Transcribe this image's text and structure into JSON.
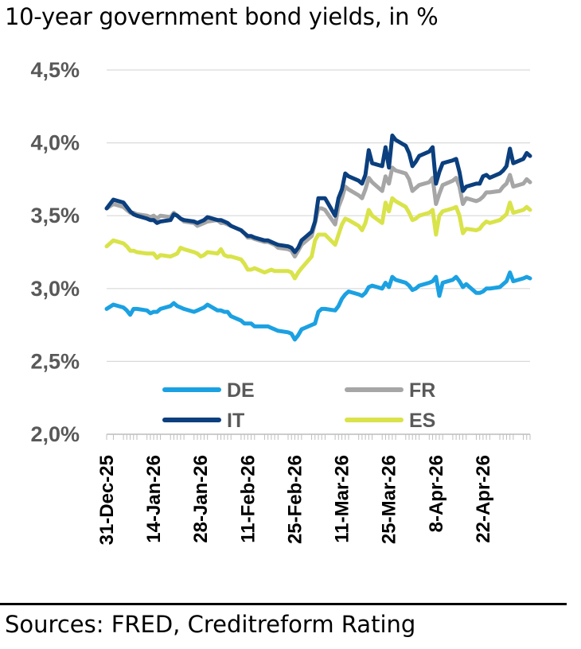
{
  "title": "10-year government bond yields, in %",
  "source": "Sources: FRED, Creditreform Rating",
  "chart_data": {
    "type": "line",
    "title": "10-year government bond yields, in %",
    "xlabel": "",
    "ylabel": "",
    "ylim": [
      2.0,
      4.5
    ],
    "yticks": [
      2.0,
      2.5,
      3.0,
      3.5,
      4.0,
      4.5
    ],
    "ytick_labels": [
      "2,0%",
      "2,5%",
      "3,0%",
      "3,5%",
      "4,0%",
      "4,5%"
    ],
    "xlim": [
      "2025-12-31",
      "2026-05-06"
    ],
    "xticks": [
      "2025-12-31",
      "2026-01-14",
      "2026-01-28",
      "2026-02-11",
      "2026-02-25",
      "2026-03-11",
      "2026-03-25",
      "2026-04-08",
      "2026-04-22"
    ],
    "xtick_labels": [
      "31-Dec-25",
      "14-Jan-26",
      "28-Jan-26",
      "11-Feb-26",
      "25-Feb-26",
      "11-Mar-26",
      "25-Mar-26",
      "8-Apr-26",
      "22-Apr-26"
    ],
    "grid": "horizontal",
    "legend_position": "lower-center",
    "x": [
      "2025-12-31",
      "2026-01-02",
      "2026-01-05",
      "2026-01-06",
      "2026-01-07",
      "2026-01-08",
      "2026-01-09",
      "2026-01-12",
      "2026-01-13",
      "2026-01-14",
      "2026-01-15",
      "2026-01-16",
      "2026-01-19",
      "2026-01-20",
      "2026-01-21",
      "2026-01-22",
      "2026-01-23",
      "2026-01-26",
      "2026-01-27",
      "2026-01-28",
      "2026-01-29",
      "2026-01-30",
      "2026-02-02",
      "2026-02-03",
      "2026-02-04",
      "2026-02-05",
      "2026-02-06",
      "2026-02-09",
      "2026-02-10",
      "2026-02-11",
      "2026-02-12",
      "2026-02-13",
      "2026-02-16",
      "2026-02-17",
      "2026-02-18",
      "2026-02-19",
      "2026-02-20",
      "2026-02-23",
      "2026-02-24",
      "2026-02-25",
      "2026-02-26",
      "2026-02-27",
      "2026-03-02",
      "2026-03-03",
      "2026-03-04",
      "2026-03-05",
      "2026-03-06",
      "2026-03-09",
      "2026-03-10",
      "2026-03-11",
      "2026-03-12",
      "2026-03-13",
      "2026-03-16",
      "2026-03-17",
      "2026-03-18",
      "2026-03-19",
      "2026-03-20",
      "2026-03-23",
      "2026-03-24",
      "2026-03-25",
      "2026-03-26",
      "2026-03-27",
      "2026-03-30",
      "2026-03-31",
      "2026-04-01",
      "2026-04-02",
      "2026-04-03",
      "2026-04-06",
      "2026-04-07",
      "2026-04-08",
      "2026-04-09",
      "2026-04-10",
      "2026-04-13",
      "2026-04-14",
      "2026-04-15",
      "2026-04-16",
      "2026-04-17",
      "2026-04-20",
      "2026-04-21",
      "2026-04-22",
      "2026-04-23",
      "2026-04-24",
      "2026-04-27",
      "2026-04-28",
      "2026-04-29",
      "2026-04-30",
      "2026-05-01",
      "2026-05-04",
      "2026-05-05",
      "2026-05-06"
    ],
    "series": [
      {
        "name": "DE",
        "color": "#1ba1e2",
        "values": [
          2.86,
          2.89,
          2.87,
          2.85,
          2.82,
          2.86,
          2.86,
          2.85,
          2.83,
          2.84,
          2.84,
          2.86,
          2.88,
          2.9,
          2.88,
          2.87,
          2.86,
          2.84,
          2.85,
          2.86,
          2.87,
          2.89,
          2.85,
          2.85,
          2.84,
          2.84,
          2.81,
          2.78,
          2.76,
          2.76,
          2.76,
          2.74,
          2.74,
          2.74,
          2.73,
          2.72,
          2.71,
          2.7,
          2.69,
          2.65,
          2.68,
          2.72,
          2.75,
          2.76,
          2.84,
          2.86,
          2.86,
          2.85,
          2.88,
          2.93,
          2.96,
          2.98,
          2.96,
          2.95,
          2.97,
          3.01,
          3.02,
          3.0,
          3.04,
          3.01,
          3.08,
          3.06,
          3.04,
          3.02,
          2.99,
          3.0,
          3.02,
          3.04,
          3.05,
          3.08,
          2.95,
          3.04,
          3.06,
          3.08,
          3.05,
          3.01,
          3.03,
          2.97,
          2.97,
          2.98,
          3.0,
          3.0,
          3.01,
          3.03,
          3.05,
          3.11,
          3.05,
          3.07,
          3.08,
          3.07
        ]
      },
      {
        "name": "FR",
        "color": "#a6a6a6",
        "values": [
          3.55,
          3.58,
          3.56,
          3.54,
          3.52,
          3.52,
          3.51,
          3.5,
          3.49,
          3.5,
          3.48,
          3.5,
          3.49,
          3.52,
          3.5,
          3.48,
          3.46,
          3.45,
          3.43,
          3.44,
          3.45,
          3.46,
          3.47,
          3.45,
          3.45,
          3.44,
          3.43,
          3.4,
          3.38,
          3.35,
          3.35,
          3.34,
          3.32,
          3.32,
          3.31,
          3.3,
          3.28,
          3.27,
          3.26,
          3.22,
          3.26,
          3.3,
          3.36,
          3.45,
          3.55,
          3.55,
          3.54,
          3.44,
          3.56,
          3.62,
          3.7,
          3.68,
          3.64,
          3.62,
          3.68,
          3.76,
          3.73,
          3.67,
          3.77,
          3.72,
          3.83,
          3.81,
          3.79,
          3.75,
          3.67,
          3.69,
          3.71,
          3.73,
          3.76,
          3.58,
          3.65,
          3.71,
          3.74,
          3.76,
          3.7,
          3.58,
          3.62,
          3.6,
          3.61,
          3.63,
          3.66,
          3.66,
          3.67,
          3.7,
          3.72,
          3.78,
          3.7,
          3.72,
          3.75,
          3.73
        ]
      },
      {
        "name": "IT",
        "color": "#0b3f7e",
        "values": [
          3.55,
          3.61,
          3.59,
          3.56,
          3.53,
          3.51,
          3.5,
          3.48,
          3.47,
          3.47,
          3.45,
          3.46,
          3.47,
          3.51,
          3.5,
          3.48,
          3.47,
          3.46,
          3.45,
          3.46,
          3.47,
          3.49,
          3.47,
          3.47,
          3.46,
          3.45,
          3.43,
          3.4,
          3.38,
          3.36,
          3.36,
          3.35,
          3.33,
          3.33,
          3.32,
          3.31,
          3.3,
          3.29,
          3.28,
          3.25,
          3.28,
          3.33,
          3.39,
          3.46,
          3.62,
          3.62,
          3.62,
          3.5,
          3.62,
          3.68,
          3.79,
          3.77,
          3.74,
          3.72,
          3.78,
          3.95,
          3.86,
          3.84,
          3.97,
          3.83,
          4.05,
          4.02,
          3.98,
          3.93,
          3.84,
          3.87,
          3.91,
          3.94,
          3.97,
          3.72,
          3.8,
          3.86,
          3.88,
          3.89,
          3.8,
          3.67,
          3.7,
          3.72,
          3.72,
          3.77,
          3.78,
          3.76,
          3.79,
          3.81,
          3.84,
          3.96,
          3.86,
          3.89,
          3.93,
          3.91
        ]
      },
      {
        "name": "ES",
        "color": "#d9e34a",
        "values": [
          3.29,
          3.33,
          3.31,
          3.29,
          3.26,
          3.26,
          3.25,
          3.24,
          3.24,
          3.24,
          3.21,
          3.23,
          3.22,
          3.23,
          3.24,
          3.28,
          3.27,
          3.25,
          3.24,
          3.22,
          3.23,
          3.25,
          3.24,
          3.27,
          3.23,
          3.22,
          3.22,
          3.2,
          3.17,
          3.13,
          3.13,
          3.14,
          3.11,
          3.12,
          3.13,
          3.12,
          3.12,
          3.12,
          3.11,
          3.07,
          3.11,
          3.14,
          3.22,
          3.33,
          3.37,
          3.37,
          3.37,
          3.3,
          3.37,
          3.44,
          3.48,
          3.47,
          3.43,
          3.4,
          3.45,
          3.54,
          3.5,
          3.45,
          3.59,
          3.53,
          3.62,
          3.6,
          3.56,
          3.52,
          3.47,
          3.48,
          3.5,
          3.52,
          3.54,
          3.37,
          3.5,
          3.53,
          3.55,
          3.56,
          3.5,
          3.38,
          3.41,
          3.4,
          3.41,
          3.44,
          3.46,
          3.45,
          3.47,
          3.49,
          3.51,
          3.59,
          3.52,
          3.54,
          3.56,
          3.54
        ]
      }
    ]
  }
}
